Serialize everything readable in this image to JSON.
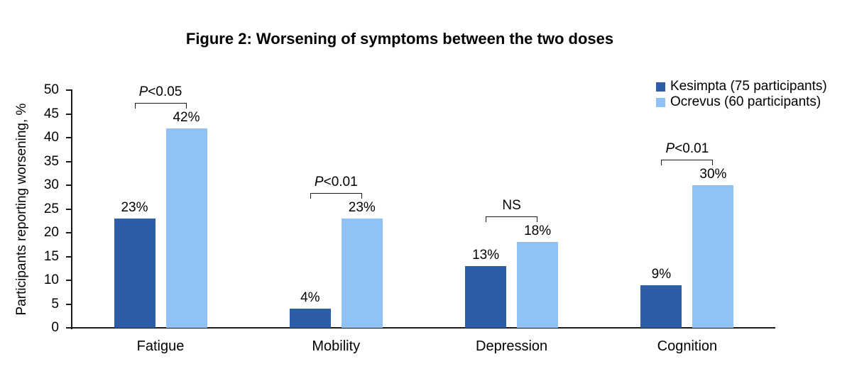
{
  "figure": {
    "title": "Figure 2: Worsening of symptoms between the two doses"
  },
  "chart_data": {
    "type": "bar",
    "title": "Figure 2: Worsening of symptoms between the two doses",
    "categories": [
      "Fatigue",
      "Mobility",
      "Depression",
      "Cognition"
    ],
    "series": [
      {
        "name": "Kesimpta (75 participants)",
        "color": "#2D5DA6",
        "values": [
          23,
          4,
          13,
          9
        ]
      },
      {
        "name": "Ocrevus (60 participants)",
        "color": "#90C2F4",
        "values": [
          42,
          23,
          18,
          30
        ]
      }
    ],
    "value_suffix": "%",
    "significance": [
      {
        "italic": "P",
        "text": "<0.05"
      },
      {
        "italic": "P",
        "text": "<0.01"
      },
      {
        "italic": "",
        "text": "NS"
      },
      {
        "italic": "P",
        "text": "<0.01"
      }
    ],
    "ylabel": "Participants reporting worsening, %",
    "ylim": [
      0,
      50
    ],
    "ytick_step": 5,
    "grid": false,
    "legend_position": "top-right",
    "axis_color": "#1a1a1a",
    "text_color": "#000000"
  }
}
